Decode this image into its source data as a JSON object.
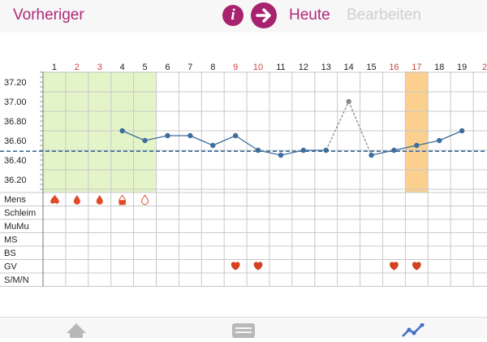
{
  "header": {
    "prev_label": "Vorheriger",
    "info_icon": "info-icon",
    "today_icon": "arrow-right-icon",
    "today_label": "Heute",
    "edit_label": "Bearbeiten"
  },
  "colors": {
    "accent": "#a8226f",
    "line": "#3e6e9c",
    "grid": "#c8c8c8",
    "red_day": "#d0443c",
    "period_fill": "#e3f5c8",
    "highlight_fill": "#fbd08e"
  },
  "chart_data": {
    "type": "line",
    "x": [
      "1",
      "2",
      "3",
      "4",
      "5",
      "6",
      "7",
      "8",
      "9",
      "10",
      "11",
      "12",
      "13",
      "14",
      "15",
      "16",
      "17",
      "18",
      "19",
      "2"
    ],
    "red_days": [
      "2",
      "3",
      "9",
      "10",
      "16",
      "17"
    ],
    "y_ticks": [
      "37.20",
      "37.00",
      "36.80",
      "36.60",
      "36.40",
      "36.20"
    ],
    "ylim": [
      36.1,
      37.3
    ],
    "series": [
      {
        "values": [
          null,
          null,
          null,
          36.7,
          36.6,
          36.65,
          36.65,
          36.55,
          36.65,
          36.5,
          36.45,
          36.5,
          36.5,
          37.0,
          36.45,
          36.5,
          36.55,
          36.6,
          36.7,
          null
        ],
        "excluded_day": "14"
      }
    ],
    "coverline": 36.49,
    "period_days": [
      "1",
      "2",
      "3",
      "4",
      "5"
    ],
    "highlight_day": "17",
    "row_labels": [
      "Mens",
      "Schleim",
      "MuMu",
      "MS",
      "BS",
      "GV",
      "S/M/N"
    ],
    "mens_icons": [
      "blood-drops-icon",
      "blood-drop-icon",
      "blood-drop-icon",
      "blood-drop-half-icon",
      "blood-drop-outline-icon"
    ],
    "gv_days": [
      "9",
      "10",
      "16",
      "17"
    ]
  },
  "tabs": {
    "home_icon": "home-icon",
    "list_icon": "list-icon",
    "chart_icon": "chart-icon"
  }
}
